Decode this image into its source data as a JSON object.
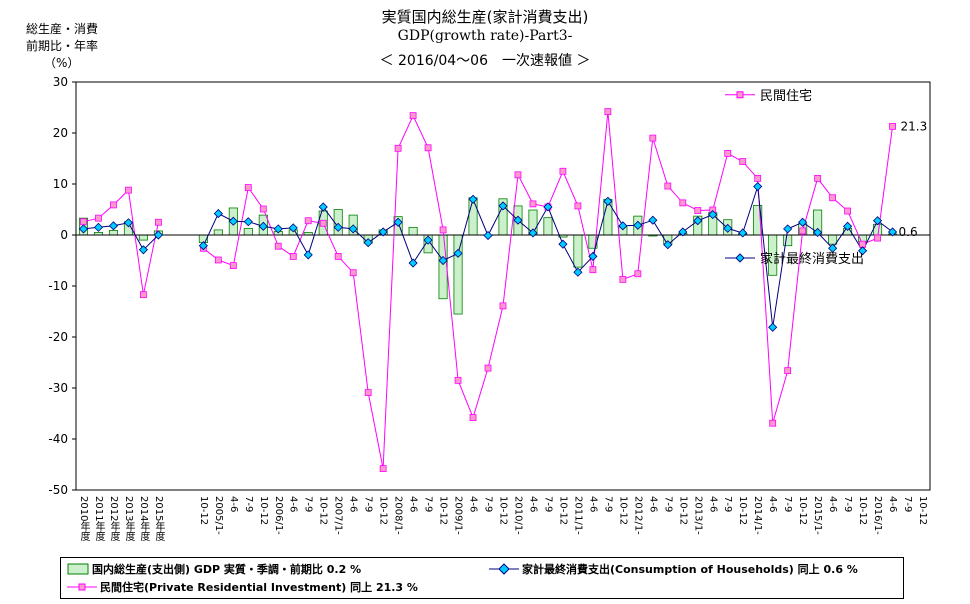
{
  "title": {
    "line1": "実質国内総生産(家計消費支出)",
    "line2": "GDP(growth rate)-Part3-",
    "line3": "＜ 2016/04～06　一次速報値 ＞"
  },
  "y_axis_label": [
    "総生産・消費",
    "前期比・年率",
    "（%）"
  ],
  "colors": {
    "bars": "#ccf0cc",
    "bar_border": "#008000",
    "households": "#00ccff",
    "households_line": "#000080",
    "residential": "#ff99cc",
    "residential_line": "#ff00ff"
  },
  "legend": {
    "gdp": "国内総生産(支出側) GDP 実質・季調・前期比 0.2 %",
    "households": "家計最終消費支出(Consumption of Households) 同上 0.6 %",
    "residential": "民間住宅(Private Residential Investment) 同上 21.3 %"
  },
  "chart_data": {
    "type": "bar+line",
    "ylim": [
      -50,
      30
    ],
    "yticks": [
      30,
      20,
      10,
      0,
      -10,
      -20,
      -30,
      -40,
      -50
    ],
    "grid": false,
    "categories": [
      "2010年度",
      "2011年度",
      "2012年度",
      "2013年度",
      "2014年度",
      "2015年度",
      "",
      "",
      "10-12",
      "2005/1-",
      "4-6",
      "7-9",
      "10-12",
      "2006/1-",
      "4-6",
      "7-9",
      "10-12",
      "2007/1-",
      "4-6",
      "7-9",
      "10-12",
      "2008/1-",
      "4-6",
      "7-9",
      "10-12",
      "2009/1-",
      "4-6",
      "7-9",
      "10-12",
      "2010/1-",
      "4-6",
      "7-9",
      "10-12",
      "2011/1-",
      "4-6",
      "7-9",
      "10-12",
      "2012/1-",
      "4-6",
      "7-9",
      "10-12",
      "2013/1-",
      "4-6",
      "7-9",
      "10-12",
      "2014/1-",
      "4-6",
      "7-9",
      "10-12",
      "2015/1-",
      "4-6",
      "7-9",
      "10-12",
      "2016/1-",
      "4-6",
      "7-9",
      "10-12"
    ],
    "series": [
      {
        "name": "国内総生産(支出側) GDP 実質・季調・前期比",
        "kind": "bar",
        "values": [
          3.3,
          0.5,
          0.9,
          2.6,
          -1.0,
          0.8,
          null,
          null,
          -1.5,
          1.0,
          5.3,
          1.3,
          3.9,
          0.7,
          1.0,
          0.5,
          4.7,
          5.0,
          3.9,
          -1.6,
          1.0,
          3.6,
          1.5,
          -3.5,
          -12.5,
          -15.5,
          7.3,
          0.0,
          7.1,
          5.7,
          4.9,
          3.4,
          -0.4,
          -6.3,
          -2.6,
          7.0,
          1.6,
          3.7,
          -0.2,
          -1.8,
          0.3,
          3.7,
          4.4,
          3.0,
          0.3,
          5.8,
          -7.9,
          -2.1,
          2.2,
          4.9,
          -1.8,
          1.3,
          -1.4,
          2.1,
          0.2,
          null,
          null
        ]
      },
      {
        "name": "家計最終消費支出(Consumption of Households)",
        "kind": "line",
        "values": [
          1.2,
          1.5,
          1.8,
          2.4,
          -2.9,
          0.0,
          null,
          null,
          -2.1,
          4.2,
          2.7,
          2.6,
          1.7,
          1.2,
          1.4,
          -3.9,
          5.5,
          1.5,
          1.2,
          -1.5,
          0.6,
          2.5,
          -5.5,
          -1.0,
          -5.0,
          -3.6,
          7.0,
          -0.1,
          5.7,
          2.9,
          0.4,
          5.5,
          -1.8,
          -7.3,
          -4.2,
          6.6,
          1.8,
          1.9,
          2.9,
          -1.9,
          0.6,
          2.8,
          4.0,
          1.3,
          0.4,
          9.5,
          -18.1,
          1.2,
          2.5,
          0.5,
          -2.6,
          1.7,
          -3.1,
          2.8,
          0.6,
          null,
          null
        ]
      },
      {
        "name": "民間住宅(Private Residential Investment)",
        "kind": "line",
        "values": [
          2.6,
          3.3,
          5.9,
          8.8,
          -11.7,
          2.5,
          null,
          null,
          -2.6,
          -4.9,
          -6.0,
          9.3,
          5.1,
          -2.2,
          -4.2,
          2.8,
          2.3,
          -4.2,
          -7.4,
          -30.9,
          -45.8,
          17.0,
          23.4,
          17.1,
          1.0,
          -28.5,
          -35.8,
          -26.1,
          -13.9,
          11.8,
          6.1,
          5.5,
          12.5,
          5.7,
          -6.8,
          24.2,
          -8.7,
          -7.6,
          19.0,
          9.6,
          6.3,
          4.8,
          4.9,
          16.0,
          14.4,
          11.1,
          -36.9,
          -26.6,
          0.8,
          11.1,
          7.3,
          4.7,
          -1.8,
          -0.6,
          21.3,
          null,
          null
        ]
      }
    ],
    "annotations": [
      "21.3",
      "0.6"
    ],
    "line_labels": [
      "民間住宅",
      "家計最終消費支出"
    ]
  }
}
